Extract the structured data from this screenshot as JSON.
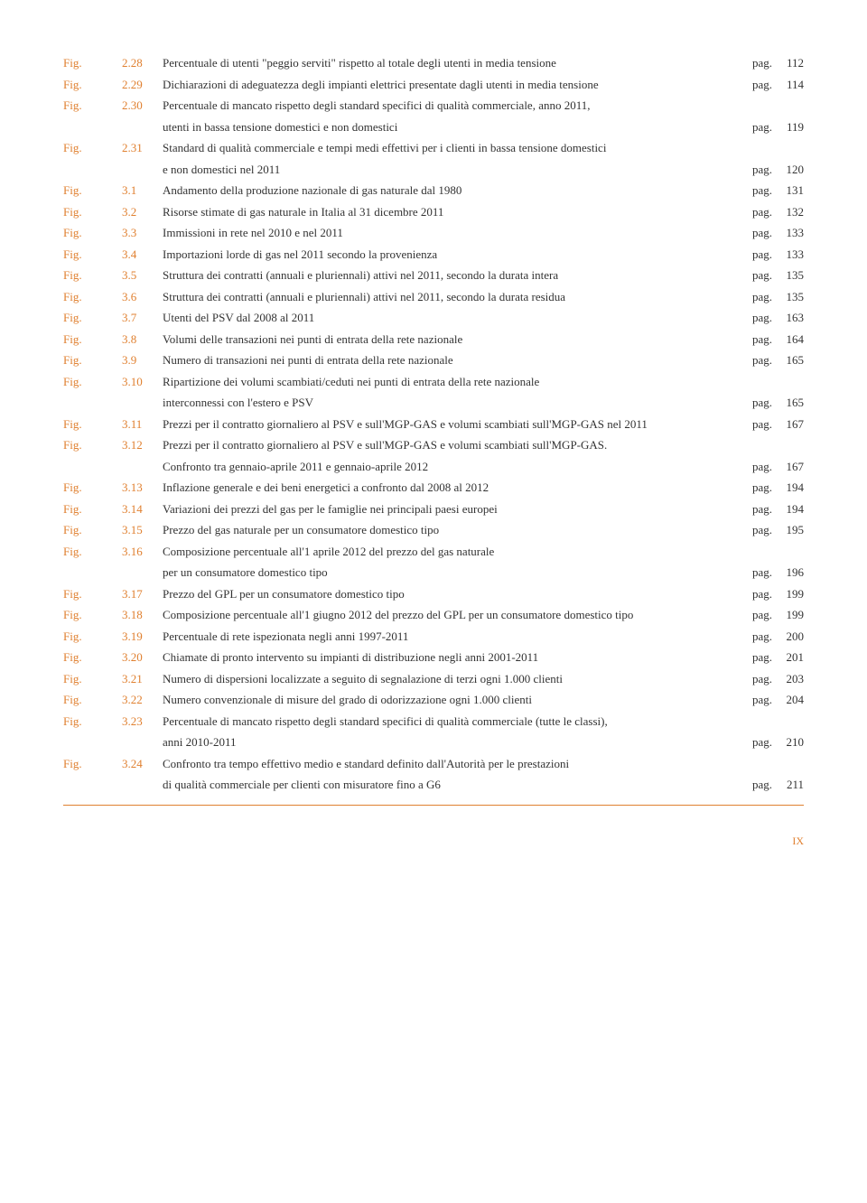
{
  "pagLabel": "pag.",
  "footerPage": "IX",
  "entries": [
    {
      "fig": "Fig.",
      "num": "2.28",
      "lines": [
        "Percentuale di utenti \"peggio serviti\" rispetto al totale degli utenti in media tensione"
      ],
      "page": "112"
    },
    {
      "fig": "Fig.",
      "num": "2.29",
      "lines": [
        "Dichiarazioni di adeguatezza degli impianti elettrici presentate dagli utenti in media tensione"
      ],
      "page": "114"
    },
    {
      "fig": "Fig.",
      "num": "2.30",
      "lines": [
        "Percentuale di mancato rispetto degli standard specifici di qualità commerciale, anno 2011,",
        "utenti in bassa tensione domestici e non domestici"
      ],
      "page": "119"
    },
    {
      "fig": "Fig.",
      "num": "2.31",
      "lines": [
        "Standard di qualità commerciale e tempi medi effettivi per i clienti in bassa tensione domestici",
        "e non domestici nel 2011"
      ],
      "page": "120"
    },
    {
      "fig": "Fig.",
      "num": "3.1",
      "lines": [
        "Andamento della produzione nazionale di gas naturale dal 1980"
      ],
      "page": "131"
    },
    {
      "fig": "Fig.",
      "num": "3.2",
      "lines": [
        "Risorse stimate di gas naturale in Italia al 31 dicembre 2011"
      ],
      "page": "132"
    },
    {
      "fig": "Fig.",
      "num": "3.3",
      "lines": [
        "Immissioni in rete nel 2010 e nel 2011"
      ],
      "page": "133"
    },
    {
      "fig": "Fig.",
      "num": "3.4",
      "lines": [
        "Importazioni lorde di gas nel 2011 secondo la provenienza"
      ],
      "page": "133"
    },
    {
      "fig": "Fig.",
      "num": "3.5",
      "lines": [
        "Struttura dei contratti (annuali e pluriennali) attivi nel 2011, secondo la durata intera"
      ],
      "page": "135"
    },
    {
      "fig": "Fig.",
      "num": "3.6",
      "lines": [
        "Struttura dei contratti (annuali e pluriennali) attivi nel 2011, secondo la durata residua"
      ],
      "page": "135"
    },
    {
      "fig": "Fig.",
      "num": "3.7",
      "lines": [
        "Utenti del PSV dal 2008 al 2011"
      ],
      "page": "163"
    },
    {
      "fig": "Fig.",
      "num": "3.8",
      "lines": [
        "Volumi delle transazioni nei punti di entrata della rete nazionale"
      ],
      "page": "164"
    },
    {
      "fig": "Fig.",
      "num": "3.9",
      "lines": [
        "Numero di transazioni nei punti di entrata della rete nazionale"
      ],
      "page": "165"
    },
    {
      "fig": "Fig.",
      "num": "3.10",
      "lines": [
        "Ripartizione dei volumi scambiati/ceduti nei punti di entrata della rete nazionale",
        "interconnessi con l'estero e PSV"
      ],
      "page": "165"
    },
    {
      "fig": "Fig.",
      "num": "3.11",
      "lines": [
        "Prezzi per il contratto giornaliero al PSV e sull'MGP-GAS e volumi scambiati sull'MGP-GAS nel 2011"
      ],
      "page": "167"
    },
    {
      "fig": "Fig.",
      "num": "3.12",
      "lines": [
        "Prezzi per il contratto giornaliero al PSV e sull'MGP-GAS e volumi scambiati sull'MGP-GAS.",
        "Confronto tra gennaio-aprile 2011 e gennaio-aprile 2012"
      ],
      "page": "167"
    },
    {
      "fig": "Fig.",
      "num": "3.13",
      "lines": [
        "Inflazione generale e dei beni energetici a confronto dal 2008 al 2012"
      ],
      "page": "194"
    },
    {
      "fig": "Fig.",
      "num": "3.14",
      "lines": [
        "Variazioni dei prezzi del gas per le famiglie nei principali paesi europei"
      ],
      "page": "194"
    },
    {
      "fig": "Fig.",
      "num": "3.15",
      "lines": [
        "Prezzo del gas naturale per un consumatore domestico tipo"
      ],
      "page": "195"
    },
    {
      "fig": "Fig.",
      "num": "3.16",
      "lines": [
        "Composizione percentuale all'1 aprile 2012 del prezzo del gas naturale",
        "per un consumatore domestico tipo"
      ],
      "page": "196"
    },
    {
      "fig": "Fig.",
      "num": "3.17",
      "lines": [
        "Prezzo del GPL per un consumatore domestico tipo"
      ],
      "page": "199"
    },
    {
      "fig": "Fig.",
      "num": "3.18",
      "lines": [
        "Composizione percentuale all'1 giugno 2012 del prezzo del GPL per un consumatore domestico tipo"
      ],
      "page": "199"
    },
    {
      "fig": "Fig.",
      "num": "3.19",
      "lines": [
        "Percentuale di rete ispezionata negli anni 1997-2011"
      ],
      "page": "200"
    },
    {
      "fig": "Fig.",
      "num": "3.20",
      "lines": [
        "Chiamate di pronto intervento su impianti di distribuzione negli anni 2001-2011"
      ],
      "page": "201"
    },
    {
      "fig": "Fig.",
      "num": "3.21",
      "lines": [
        "Numero di dispersioni localizzate a seguito di segnalazione di terzi ogni 1.000 clienti"
      ],
      "page": "203"
    },
    {
      "fig": "Fig.",
      "num": "3.22",
      "lines": [
        "Numero convenzionale di misure del grado di odorizzazione ogni 1.000 clienti"
      ],
      "page": "204"
    },
    {
      "fig": "Fig.",
      "num": "3.23",
      "lines": [
        "Percentuale di mancato rispetto degli standard specifici di qualità commerciale (tutte le classi),",
        "anni 2010-2011"
      ],
      "page": "210"
    },
    {
      "fig": "Fig.",
      "num": "3.24",
      "lines": [
        "Confronto tra tempo effettivo medio e standard definito dall'Autorità per le prestazioni",
        "di qualità commerciale per clienti con misuratore fino a G6"
      ],
      "page": "211"
    }
  ]
}
